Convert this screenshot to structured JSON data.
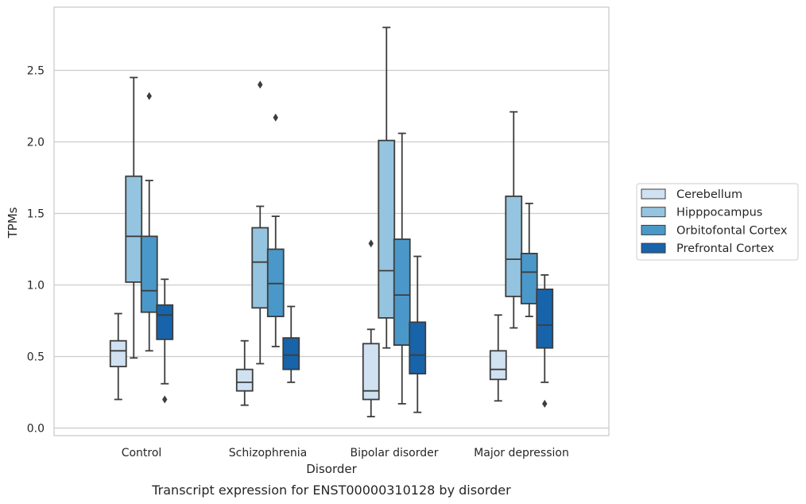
{
  "chart_data": {
    "type": "boxplot",
    "caption": "Transcript expression for ENST00000310128 by disorder",
    "xlabel": "Disorder",
    "ylabel": "TPMs",
    "ylim": [
      -0.05,
      2.88
    ],
    "yticks": [
      0.0,
      0.5,
      1.0,
      1.5,
      2.0,
      2.5
    ],
    "ytick_labels": [
      "0.0",
      "0.5",
      "1.0",
      "1.5",
      "2.0",
      "2.5"
    ],
    "grid": "horizontal",
    "legend_position": "right",
    "categories": [
      "Control",
      "Schizophrenia",
      "Bipolar disorder",
      "Major depression"
    ],
    "series": [
      {
        "name": "Cerebellum",
        "color": "#d0e1f2",
        "boxes": [
          {
            "whislo": 0.2,
            "q1": 0.43,
            "med": 0.54,
            "q3": 0.61,
            "whishi": 0.8,
            "fliers": []
          },
          {
            "whislo": 0.16,
            "q1": 0.26,
            "med": 0.32,
            "q3": 0.41,
            "whishi": 0.61,
            "fliers": []
          },
          {
            "whislo": 0.08,
            "q1": 0.2,
            "med": 0.26,
            "q3": 0.59,
            "whishi": 0.69,
            "fliers": [
              1.29
            ]
          },
          {
            "whislo": 0.19,
            "q1": 0.34,
            "med": 0.41,
            "q3": 0.54,
            "whishi": 0.79,
            "fliers": []
          }
        ]
      },
      {
        "name": "Hipppocampus",
        "color": "#94c4df",
        "boxes": [
          {
            "whislo": 0.49,
            "q1": 1.02,
            "med": 1.34,
            "q3": 1.76,
            "whishi": 2.45,
            "fliers": []
          },
          {
            "whislo": 0.45,
            "q1": 0.84,
            "med": 1.16,
            "q3": 1.4,
            "whishi": 1.55,
            "fliers": [
              2.4
            ]
          },
          {
            "whislo": 0.56,
            "q1": 0.77,
            "med": 1.1,
            "q3": 2.01,
            "whishi": 2.8,
            "fliers": []
          },
          {
            "whislo": 0.7,
            "q1": 0.92,
            "med": 1.18,
            "q3": 1.62,
            "whishi": 2.21,
            "fliers": []
          }
        ]
      },
      {
        "name": "Orbitofontal Cortex",
        "color": "#4a98c9",
        "boxes": [
          {
            "whislo": 0.54,
            "q1": 0.81,
            "med": 0.96,
            "q3": 1.34,
            "whishi": 1.73,
            "fliers": [
              2.32
            ]
          },
          {
            "whislo": 0.57,
            "q1": 0.78,
            "med": 1.01,
            "q3": 1.25,
            "whishi": 1.48,
            "fliers": [
              2.17
            ]
          },
          {
            "whislo": 0.17,
            "q1": 0.58,
            "med": 0.93,
            "q3": 1.32,
            "whishi": 2.06,
            "fliers": []
          },
          {
            "whislo": 0.78,
            "q1": 0.87,
            "med": 1.09,
            "q3": 1.22,
            "whishi": 1.57,
            "fliers": []
          }
        ]
      },
      {
        "name": "Prefrontal Cortex",
        "color": "#1764ab",
        "boxes": [
          {
            "whislo": 0.31,
            "q1": 0.62,
            "med": 0.79,
            "q3": 0.86,
            "whishi": 1.04,
            "fliers": [
              0.2
            ]
          },
          {
            "whislo": 0.32,
            "q1": 0.41,
            "med": 0.51,
            "q3": 0.63,
            "whishi": 0.85,
            "fliers": []
          },
          {
            "whislo": 0.11,
            "q1": 0.38,
            "med": 0.51,
            "q3": 0.74,
            "whishi": 1.2,
            "fliers": []
          },
          {
            "whislo": 0.32,
            "q1": 0.56,
            "med": 0.72,
            "q3": 0.97,
            "whishi": 1.07,
            "fliers": [
              0.17
            ]
          }
        ]
      }
    ]
  }
}
